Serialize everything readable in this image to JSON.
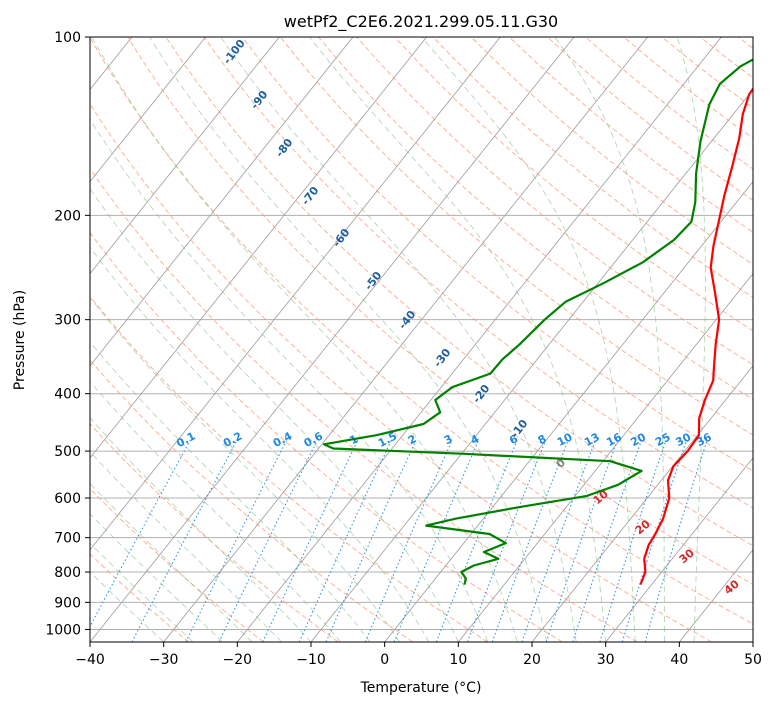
{
  "chart_data": {
    "type": "line",
    "chart_kind": "skew-T log-P diagram",
    "title": "wetPf2_C2E6.2021.299.05.11.G30",
    "xlabel": "Temperature (°C)",
    "ylabel": "Pressure (hPa)",
    "xlim": [
      -40,
      50
    ],
    "ylim": [
      1050,
      100
    ],
    "y_scale": "log",
    "x_ticks": [
      -40,
      -30,
      -20,
      -10,
      0,
      10,
      20,
      30,
      40,
      50
    ],
    "y_ticks": [
      100,
      200,
      300,
      400,
      500,
      600,
      700,
      800,
      900,
      1000
    ],
    "grid": true,
    "colors": {
      "temperature": "#ff0000",
      "dewpoint": "#008000",
      "dry_adiabats": "#ff8c69",
      "moist_adiabats": "#7fbf7f",
      "mixing_ratio": "#1e88e5",
      "isotherms": "#888888",
      "isobars": "#aaaaaa"
    },
    "series": [
      {
        "role": "temperature",
        "points": [
          {
            "p": 840,
            "t": 28.5
          },
          {
            "p": 800,
            "t": 27.8
          },
          {
            "p": 760,
            "t": 26.2
          },
          {
            "p": 720,
            "t": 25.3
          },
          {
            "p": 690,
            "t": 25.0
          },
          {
            "p": 650,
            "t": 24.4
          },
          {
            "p": 600,
            "t": 23.0
          },
          {
            "p": 560,
            "t": 20.9
          },
          {
            "p": 530,
            "t": 20.1
          },
          {
            "p": 500,
            "t": 20.4
          },
          {
            "p": 470,
            "t": 20.2
          },
          {
            "p": 440,
            "t": 18.4
          },
          {
            "p": 410,
            "t": 17.2
          },
          {
            "p": 380,
            "t": 16.2
          },
          {
            "p": 360,
            "t": 14.8
          },
          {
            "p": 330,
            "t": 12.6
          },
          {
            "p": 300,
            "t": 10.4
          },
          {
            "p": 270,
            "t": 6.9
          },
          {
            "p": 245,
            "t": 3.6
          },
          {
            "p": 225,
            "t": 1.6
          },
          {
            "p": 205,
            "t": -0.3
          },
          {
            "p": 185,
            "t": -2.4
          },
          {
            "p": 165,
            "t": -4.5
          },
          {
            "p": 148,
            "t": -6.6
          },
          {
            "p": 135,
            "t": -8.7
          },
          {
            "p": 125,
            "t": -10.0
          },
          {
            "p": 118,
            "t": -10.2
          },
          {
            "p": 112,
            "t": -8.9
          },
          {
            "p": 106,
            "t": -7.0
          },
          {
            "p": 100,
            "t": -4.8
          }
        ]
      },
      {
        "role": "dewpoint",
        "points": [
          {
            "p": 840,
            "t": 4.6
          },
          {
            "p": 820,
            "t": 4.1
          },
          {
            "p": 800,
            "t": 2.8
          },
          {
            "p": 780,
            "t": 3.8
          },
          {
            "p": 760,
            "t": 6.4
          },
          {
            "p": 740,
            "t": 3.7
          },
          {
            "p": 715,
            "t": 5.7
          },
          {
            "p": 690,
            "t": 2.5
          },
          {
            "p": 668,
            "t": -7.0
          },
          {
            "p": 650,
            "t": -3.7
          },
          {
            "p": 620,
            "t": 4.1
          },
          {
            "p": 595,
            "t": 11.6
          },
          {
            "p": 570,
            "t": 14.6
          },
          {
            "p": 540,
            "t": 16.3
          },
          {
            "p": 520,
            "t": 11.0
          },
          {
            "p": 505,
            "t": -10.0
          },
          {
            "p": 495,
            "t": -28.0
          },
          {
            "p": 487,
            "t": -29.7
          },
          {
            "p": 470,
            "t": -23.6
          },
          {
            "p": 450,
            "t": -18.4
          },
          {
            "p": 430,
            "t": -17.4
          },
          {
            "p": 410,
            "t": -19.4
          },
          {
            "p": 390,
            "t": -18.5
          },
          {
            "p": 370,
            "t": -14.8
          },
          {
            "p": 350,
            "t": -14.7
          },
          {
            "p": 330,
            "t": -14.0
          },
          {
            "p": 300,
            "t": -13.3
          },
          {
            "p": 280,
            "t": -12.4
          },
          {
            "p": 260,
            "t": -9.2
          },
          {
            "p": 240,
            "t": -6.2
          },
          {
            "p": 220,
            "t": -4.4
          },
          {
            "p": 205,
            "t": -4.0
          },
          {
            "p": 190,
            "t": -5.6
          },
          {
            "p": 170,
            "t": -8.6
          },
          {
            "p": 150,
            "t": -11.5
          },
          {
            "p": 130,
            "t": -14.3
          },
          {
            "p": 120,
            "t": -15.1
          },
          {
            "p": 112,
            "t": -14.2
          },
          {
            "p": 105,
            "t": -11.9
          },
          {
            "p": 100,
            "t": -9.9
          }
        ]
      }
    ],
    "dry_adiabat_labels": [
      "-100",
      "-90",
      "-80",
      "-70",
      "-60",
      "-50",
      "-40",
      "-30",
      "-20",
      "-10"
    ],
    "moist_adiabat_labels": [
      "0",
      "10",
      "20",
      "30",
      "40"
    ],
    "mixing_ratio_labels": [
      "0.1",
      "0.2",
      "0.4",
      "0.6",
      "1",
      "1.5",
      "2",
      "3",
      "4",
      "6",
      "8",
      "10",
      "13",
      "16",
      "20",
      "25",
      "30",
      "36"
    ]
  }
}
